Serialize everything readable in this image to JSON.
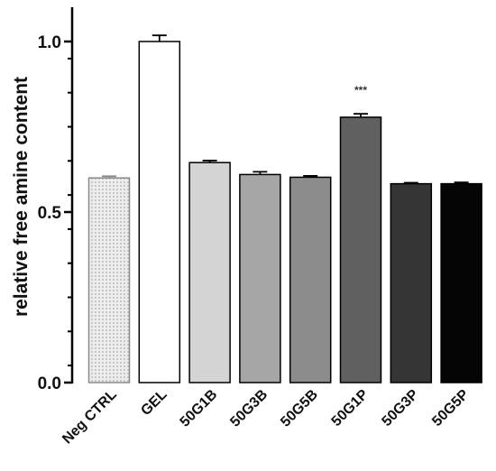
{
  "chart_data": {
    "type": "bar",
    "title": "",
    "xlabel": "",
    "ylabel": "relative free amine content",
    "ylim": [
      0.0,
      1.1
    ],
    "yticks": [
      0.0,
      0.5,
      1.0
    ],
    "ytick_labels": [
      "0.0",
      "0.5",
      "1.0"
    ],
    "grid": false,
    "legend": "none",
    "categories": [
      "Neg CTRL",
      "GEL",
      "50G1B",
      "50G3B",
      "50G5B",
      "50G1P",
      "50G3P",
      "50G5P"
    ],
    "values": [
      0.6,
      1.0,
      0.645,
      0.61,
      0.602,
      0.778,
      0.583,
      0.583
    ],
    "errors": [
      0.005,
      0.018,
      0.006,
      0.008,
      0.004,
      0.01,
      0.003,
      0.004
    ],
    "colors": [
      "#e6e6e6",
      "#ffffff",
      "#d4d4d4",
      "#a6a6a6",
      "#8c8c8c",
      "#606060",
      "#353535",
      "#050505"
    ],
    "patterns": [
      "dotted",
      "none",
      "none",
      "none",
      "none",
      "none",
      "none",
      "none"
    ],
    "annotations": [
      {
        "category": "50G1P",
        "text": "***"
      }
    ]
  }
}
